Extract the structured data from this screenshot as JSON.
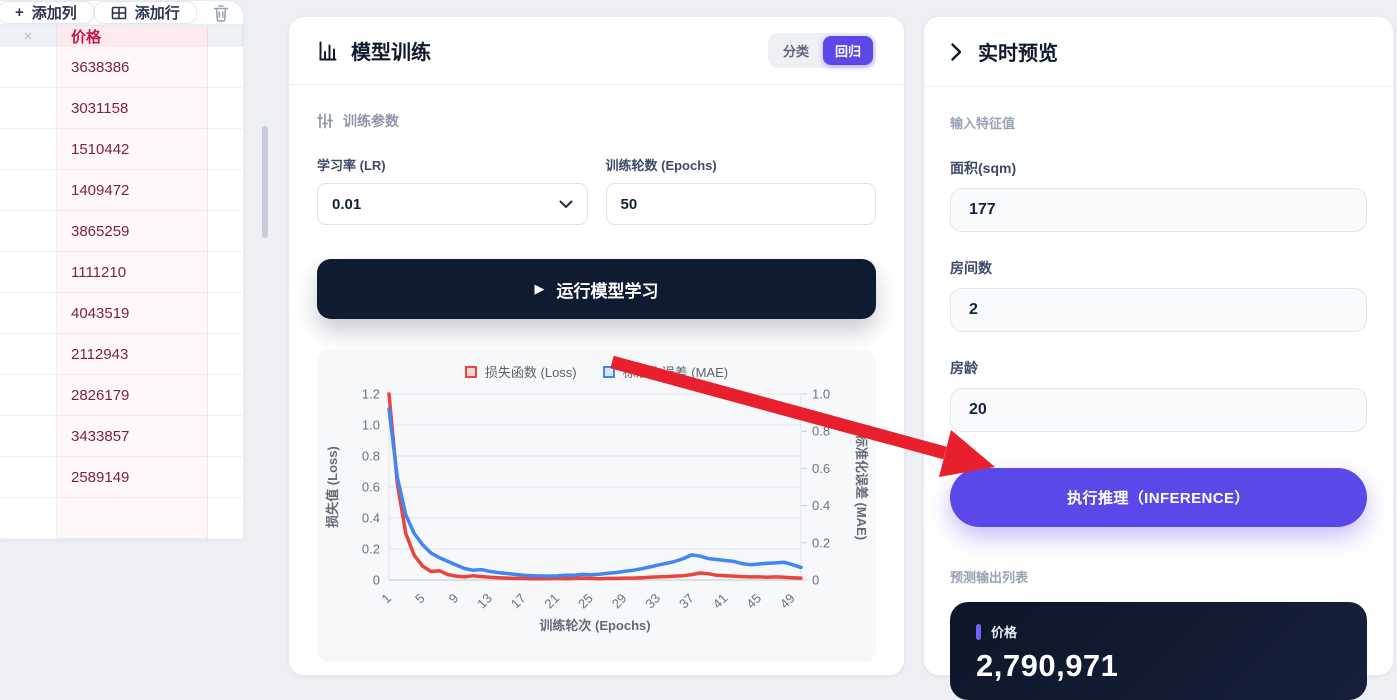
{
  "colors": {
    "accent_purple": "#5b48e8",
    "dark_navy": "#0f1b31",
    "annotation_arrow_red": "#e81f2d",
    "price_header_red": "#c2184e",
    "price_cell_maroon": "#7d1f41"
  },
  "left_panel": {
    "toolbar": {
      "add_column": "添加列",
      "add_row": "添加行"
    },
    "table": {
      "remove_column_icon": "×",
      "price_header": "价格",
      "rows": [
        "3638386",
        "3031158",
        "1510442",
        "1409472",
        "3865259",
        "1111210",
        "4043519",
        "2112943",
        "2826179",
        "3433857",
        "2589149"
      ]
    }
  },
  "training_panel": {
    "title": "模型训练",
    "tabs": [
      {
        "label": "分类"
      },
      {
        "label": "回归"
      }
    ],
    "params_section": "训练参数",
    "lr_label": "学习率 (LR)",
    "lr_value": "0.01",
    "epochs_label": "训练轮数 (Epochs)",
    "epochs_value": "50",
    "run_button": "运行模型学习",
    "play_glyph": "▶"
  },
  "chart_data": {
    "type": "line",
    "xlabel": "训练轮次 (Epochs)",
    "ylabel_left": "损失值 (Loss)",
    "ylabel_right": "标准化误差 (MAE)",
    "ylim_left": [
      0,
      1.2
    ],
    "ylim_right": [
      0,
      1.0
    ],
    "y_ticks_left": [
      "1.2",
      "1.0",
      "0.8",
      "0.6",
      "0.4",
      "0.2",
      "0"
    ],
    "y_ticks_right": [
      "1.0",
      "0.8",
      "0.6",
      "0.4",
      "0.2",
      "0"
    ],
    "x_ticks": [
      1,
      5,
      9,
      13,
      17,
      21,
      25,
      29,
      33,
      37,
      41,
      45,
      49
    ],
    "x_range": [
      1,
      50
    ],
    "grid": true,
    "legend_position": "top",
    "series": [
      {
        "name": "损失函数 (Loss)",
        "axis": "left",
        "color": "#e8453c",
        "swatch_fill": "#f8d7d5",
        "values": [
          1.2,
          0.62,
          0.3,
          0.16,
          0.09,
          0.055,
          0.06,
          0.035,
          0.025,
          0.02,
          0.028,
          0.022,
          0.018,
          0.015,
          0.012,
          0.01,
          0.01,
          0.008,
          0.008,
          0.008,
          0.01,
          0.008,
          0.01,
          0.012,
          0.01,
          0.008,
          0.01,
          0.01,
          0.012,
          0.012,
          0.015,
          0.018,
          0.02,
          0.022,
          0.025,
          0.028,
          0.035,
          0.045,
          0.04,
          0.03,
          0.028,
          0.025,
          0.022,
          0.02,
          0.02,
          0.018,
          0.02,
          0.018,
          0.015,
          0.012
        ]
      },
      {
        "name": "标准化误差 (MAE)",
        "axis": "right",
        "color": "#4285f4",
        "swatch_fill": "#d7e5fc",
        "values": [
          0.92,
          0.55,
          0.35,
          0.25,
          0.19,
          0.145,
          0.12,
          0.1,
          0.08,
          0.062,
          0.052,
          0.056,
          0.046,
          0.04,
          0.035,
          0.03,
          0.026,
          0.023,
          0.022,
          0.021,
          0.022,
          0.025,
          0.026,
          0.03,
          0.028,
          0.031,
          0.036,
          0.04,
          0.046,
          0.052,
          0.06,
          0.07,
          0.08,
          0.09,
          0.1,
          0.115,
          0.135,
          0.128,
          0.115,
          0.11,
          0.105,
          0.1,
          0.088,
          0.082,
          0.086,
          0.09,
          0.092,
          0.095,
          0.082,
          0.068
        ]
      }
    ]
  },
  "preview_panel": {
    "title": "实时预览",
    "input_section": "输入特征值",
    "fields": [
      {
        "label": "面积(sqm)",
        "value": "177"
      },
      {
        "label": "房间数",
        "value": "2"
      },
      {
        "label": "房龄",
        "value": "20"
      }
    ],
    "inference_button": "执行推理（INFERENCE）",
    "output_section": "预测输出列表",
    "result": {
      "label": "价格",
      "value": "2,790,971"
    }
  }
}
